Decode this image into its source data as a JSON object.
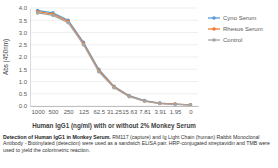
{
  "chart_data": {
    "type": "line",
    "x_label": "Human IgG1 (ng/ml) with or without 2% Monkey Serum",
    "y_label": "Abs (450nm)",
    "annotations": [
      "Detection of Human IgG1 in Monkey Serum.",
      "RM117 (capture) and Ig Light Chain (human) Rabbit Monoclonal Antibody - Biotinylated (detection) were used as a sandwich ELISA pair. HRP-conjugated streptavidin and TMB were used to yield the colorimetric reaction."
    ],
    "categories": [
      "1000",
      "500",
      "250",
      "125",
      "62.5",
      "31.25",
      "15.63",
      "7.81",
      "3.91",
      "1.95",
      "0"
    ],
    "series": [
      {
        "name": "Cyno Serum",
        "color": "#5b9bd5",
        "marker": "circle",
        "values": [
          3.9,
          3.8,
          3.5,
          2.6,
          1.5,
          0.8,
          0.42,
          0.22,
          0.12,
          0.08,
          0.05
        ]
      },
      {
        "name": "Rhesus Serum",
        "color": "#ed7d31",
        "marker": "circle",
        "values": [
          3.85,
          3.75,
          3.45,
          2.55,
          1.45,
          0.78,
          0.4,
          0.2,
          0.11,
          0.08,
          0.05
        ]
      },
      {
        "name": "Control",
        "color": "#a5a5a5",
        "marker": "circle",
        "values": [
          3.8,
          3.7,
          3.4,
          2.5,
          1.4,
          0.75,
          0.38,
          0.2,
          0.1,
          0.07,
          0.05
        ]
      }
    ],
    "ylim": [
      0,
      4
    ],
    "yticks": [
      {
        "value": 0,
        "label": "0.0"
      },
      0.5,
      {
        "value": 1,
        "label": "1.0"
      },
      1.5,
      {
        "value": 2,
        "label": "2.0"
      },
      2.5,
      {
        "value": 3,
        "label": "3.0"
      },
      3.5,
      {
        "value": 4,
        "label": "4.0"
      }
    ],
    "grid": true,
    "legend": "right"
  }
}
